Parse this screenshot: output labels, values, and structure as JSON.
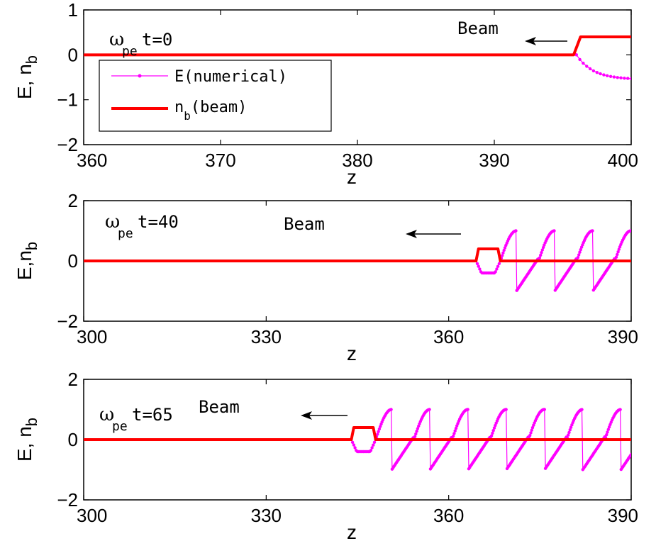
{
  "colors": {
    "field": "#ff00ff",
    "beam": "#ff0000",
    "axis": "#000000"
  },
  "legend": {
    "field_label": "E(numerical)",
    "beam_label_base": "n",
    "beam_label_sub": "b",
    "beam_label_rest": "(beam)"
  },
  "chart_data": [
    {
      "type": "line",
      "xlabel": "z",
      "ylabel_base": "E, n",
      "ylabel_sub": "b",
      "xlim": [
        360,
        400
      ],
      "ylim": [
        -2,
        1
      ],
      "xticks": [
        360,
        370,
        380,
        390,
        400
      ],
      "yticks": [
        -2,
        -1,
        0,
        1
      ],
      "time_label": {
        "omega": "ω",
        "sub": "pe",
        "rest": "t=0"
      },
      "beam_annotation": "Beam",
      "series": [
        {
          "name": "E(numerical)",
          "kind": "field",
          "head": 396.0,
          "tail": 400,
          "amplitude": 0.55,
          "decay": 1.2
        },
        {
          "name": "n_b(beam)",
          "kind": "beam",
          "front": 395.8,
          "rise_end": 396.3,
          "end": 400,
          "level": 0.4
        }
      ]
    },
    {
      "type": "line",
      "xlabel": "z",
      "ylabel_base": "E,n",
      "ylabel_sub": "b",
      "xlim": [
        300,
        390
      ],
      "ylim": [
        -2,
        2
      ],
      "xticks": [
        300,
        330,
        360,
        390
      ],
      "yticks": [
        -2,
        0,
        2
      ],
      "time_label": {
        "omega": "ω",
        "sub": "pe",
        "rest": "t=40"
      },
      "beam_annotation": "Beam",
      "series": [
        {
          "name": "E(numerical)",
          "kind": "field",
          "beam_start": 364.5,
          "beam_end": 368.5,
          "dip": -0.4,
          "wave_start": 368.5,
          "period": 6.28,
          "amplitude": 1.0,
          "tail": 390
        },
        {
          "name": "n_b(beam)",
          "kind": "beam",
          "start": 364.5,
          "end": 368.5,
          "level": 0.4,
          "xmax": 390
        }
      ]
    },
    {
      "type": "line",
      "xlabel": "z",
      "ylabel_base": "E, n",
      "ylabel_sub": "b",
      "xlim": [
        300,
        390
      ],
      "ylim": [
        -2,
        2
      ],
      "xticks": [
        300,
        330,
        360,
        390
      ],
      "yticks": [
        -2,
        0,
        2
      ],
      "time_label": {
        "omega": "ω",
        "sub": "pe",
        "rest": "t=65"
      },
      "beam_annotation": "Beam",
      "series": [
        {
          "name": "E(numerical)",
          "kind": "field",
          "beam_start": 344.0,
          "beam_end": 348.0,
          "dip": -0.4,
          "wave_start": 348.0,
          "period": 6.28,
          "amplitude": 1.0,
          "tail": 390
        },
        {
          "name": "n_b(beam)",
          "kind": "beam",
          "start": 344.0,
          "end": 348.0,
          "level": 0.4,
          "xmax": 390
        }
      ]
    }
  ]
}
